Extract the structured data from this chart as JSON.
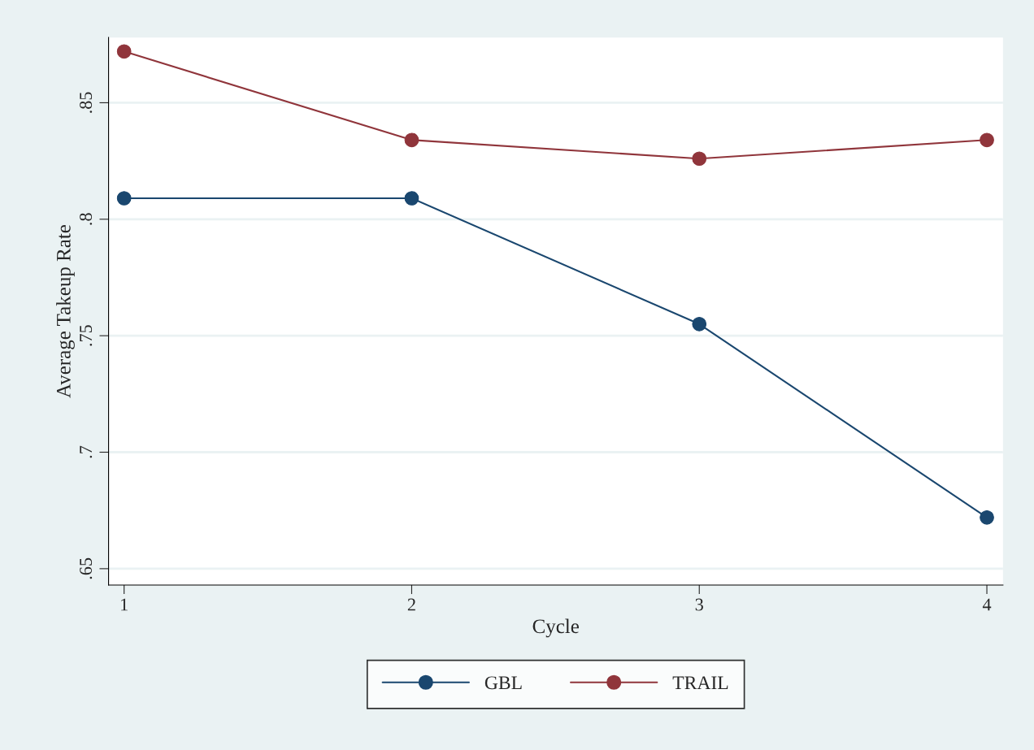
{
  "chart_data": {
    "type": "line",
    "xlabel": "Cycle",
    "ylabel": "Average Takeup Rate",
    "x": [
      1,
      2,
      3,
      4
    ],
    "series": [
      {
        "name": "GBL",
        "color": "#1a476f",
        "values": [
          0.809,
          0.809,
          0.755,
          0.672
        ]
      },
      {
        "name": "TRAIL",
        "color": "#90353b",
        "values": [
          0.872,
          0.834,
          0.826,
          0.834
        ]
      }
    ],
    "xlim": [
      0.946,
      4.056
    ],
    "xticks": [
      1,
      2,
      3,
      4
    ],
    "ylim": [
      0.643,
      0.878
    ],
    "yticks": [
      {
        "value": 0.65,
        "label": ".65"
      },
      {
        "value": 0.7,
        "label": ".7"
      },
      {
        "value": 0.75,
        "label": ".75"
      },
      {
        "value": 0.8,
        "label": ".8"
      },
      {
        "value": 0.85,
        "label": ".85"
      }
    ],
    "grid": "y",
    "legend": "bottom",
    "marker": "circle",
    "line_style": "solid"
  }
}
